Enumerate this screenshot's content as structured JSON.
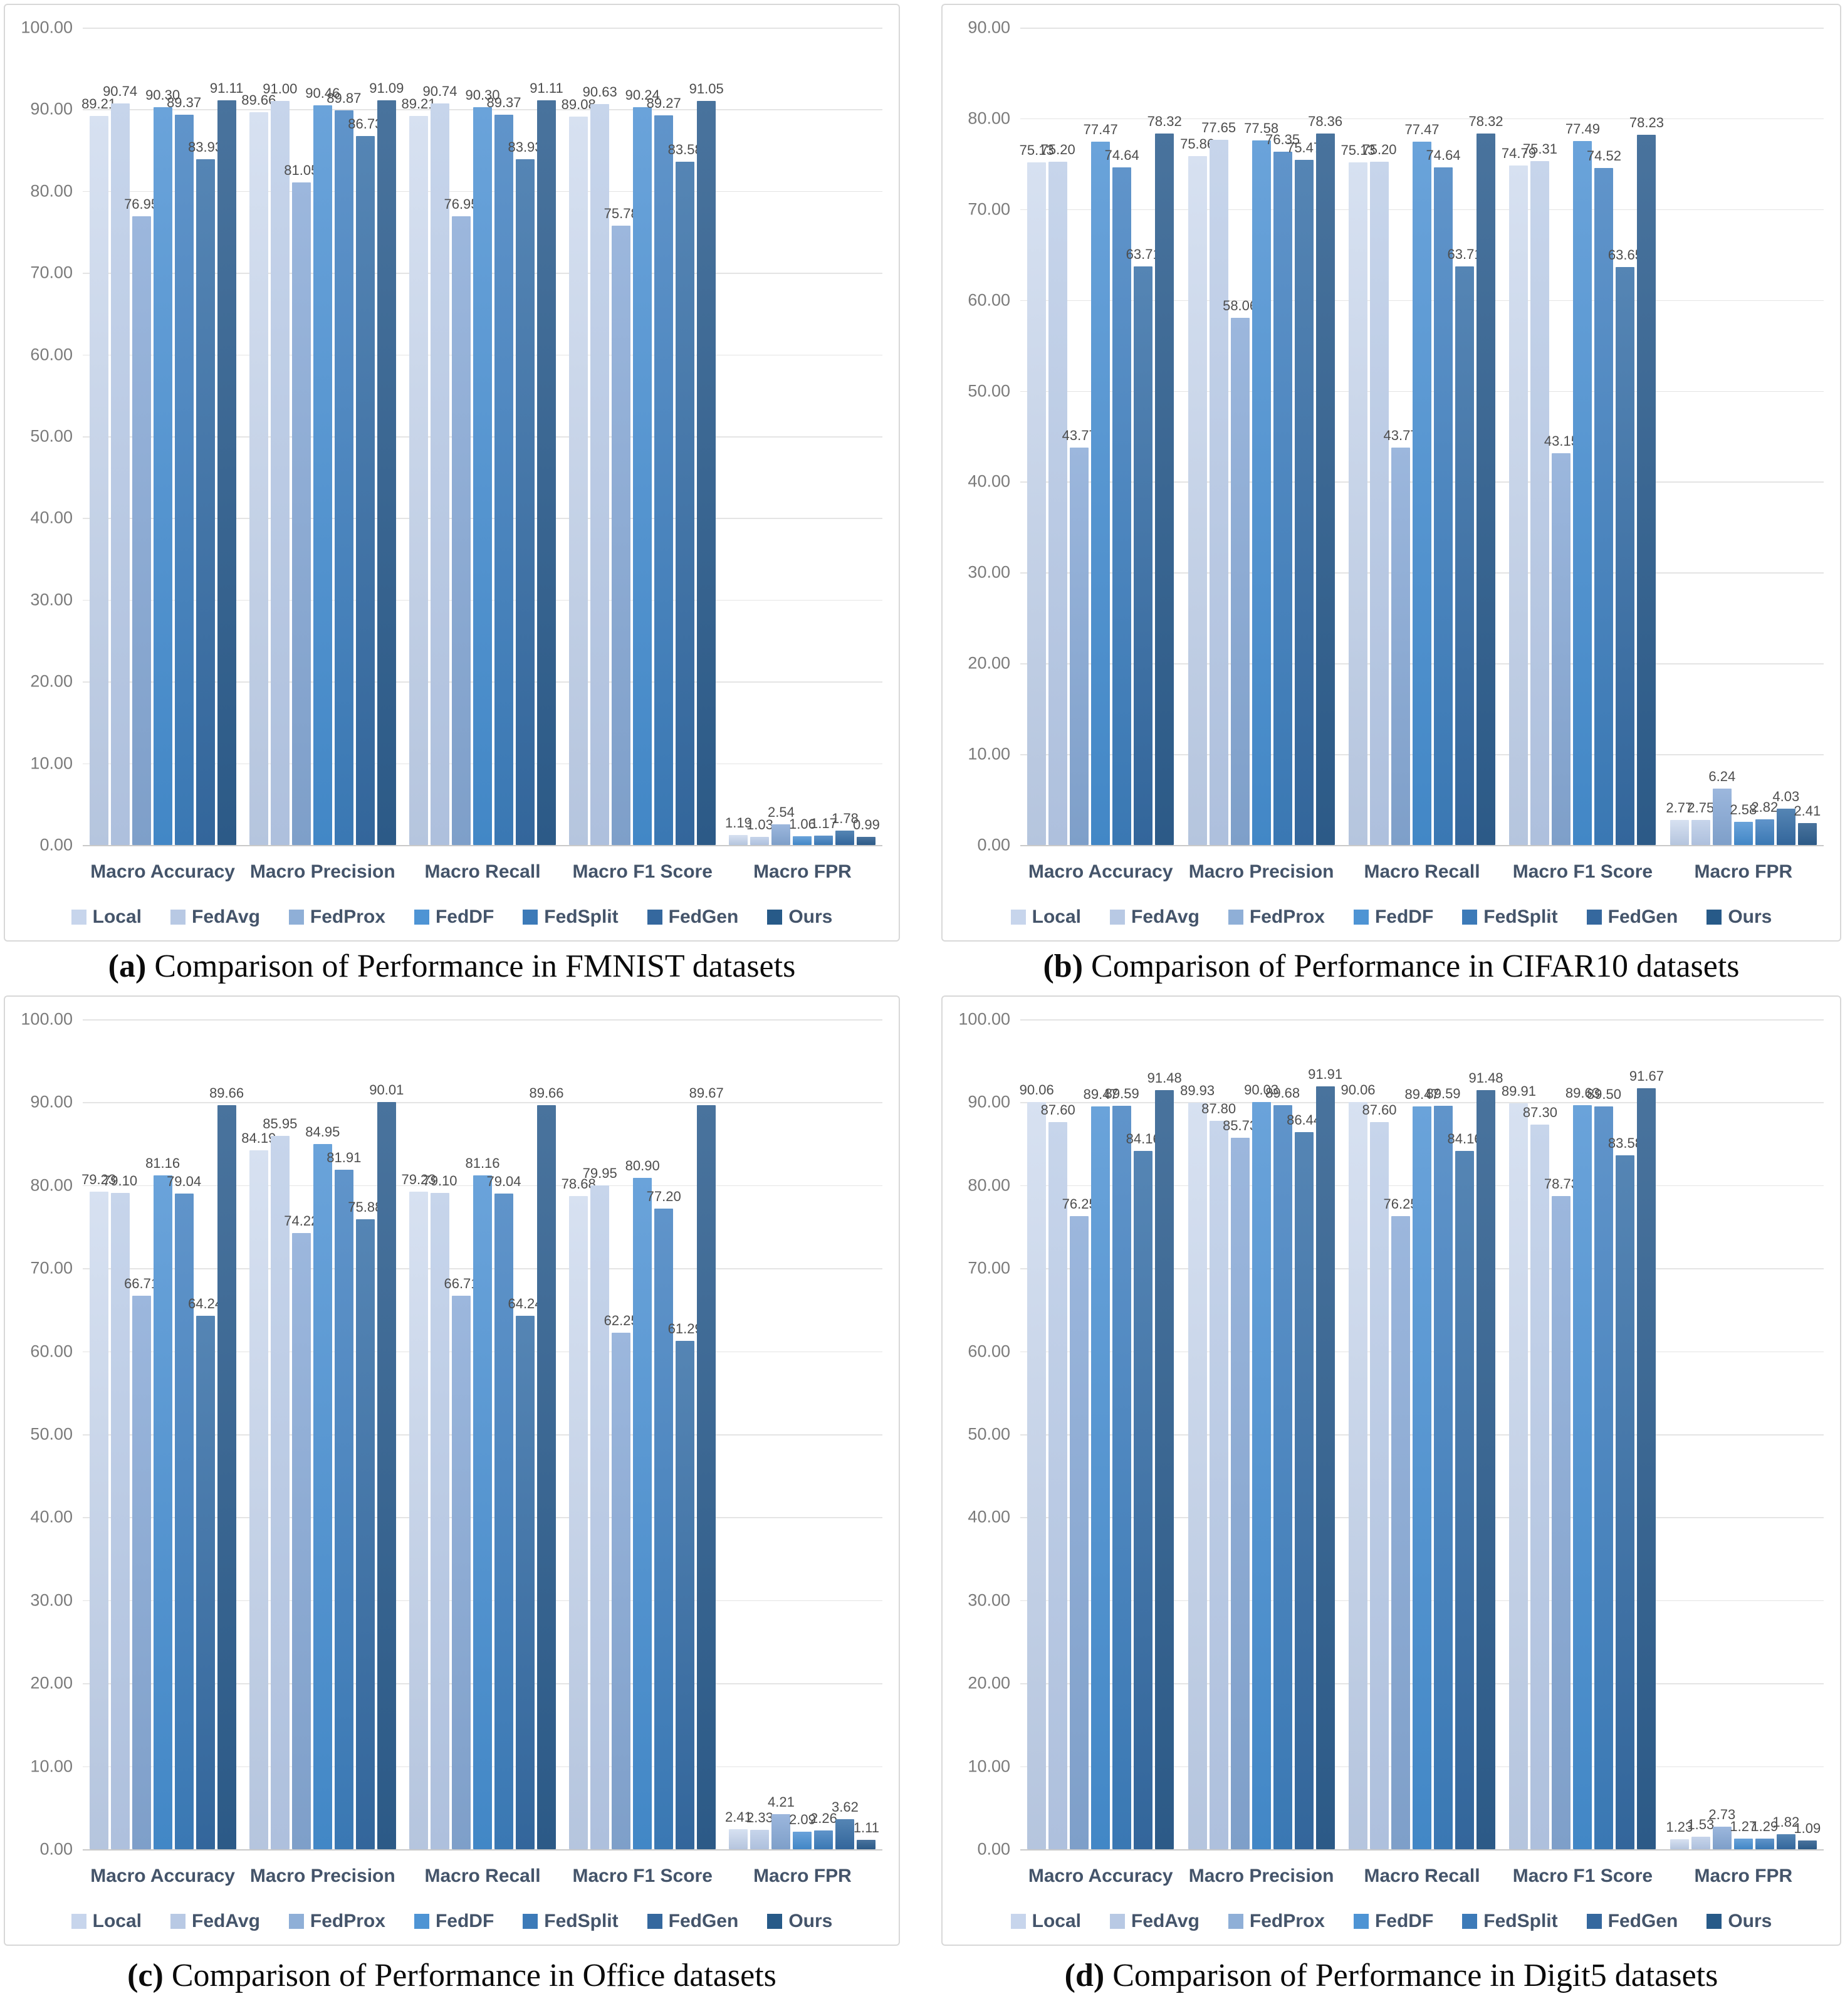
{
  "series": [
    {
      "name": "Local",
      "color": {
        "top": "#d7e1f1",
        "bottom": "#b5c5de",
        "swatch": "#c7d5ec"
      }
    },
    {
      "name": "FedAvg",
      "color": {
        "top": "#c7d5eb",
        "bottom": "#aec0dd",
        "swatch": "#b8c9e4"
      }
    },
    {
      "name": "FedProx",
      "color": {
        "top": "#9cb7dd",
        "bottom": "#7e9fc9",
        "swatch": "#8fafd7"
      }
    },
    {
      "name": "FedDF",
      "color": {
        "top": "#6aa3da",
        "bottom": "#4287c6",
        "swatch": "#4e94d4"
      }
    },
    {
      "name": "FedSplit",
      "color": {
        "top": "#6094ca",
        "bottom": "#3a78b3",
        "swatch": "#3c7ab8"
      }
    },
    {
      "name": "FedGen",
      "color": {
        "top": "#5585b4",
        "bottom": "#33669b",
        "swatch": "#35689e"
      }
    },
    {
      "name": "Ours",
      "color": {
        "top": "#49739d",
        "bottom": "#2c5a87",
        "swatch": "#275a88"
      }
    }
  ],
  "chart_data": [
    {
      "type": "bar",
      "caption": {
        "letter": "a",
        "text": "Comparison of Performance in FMNIST datasets"
      },
      "ylim": [
        0,
        100
      ],
      "ytick_step": 10,
      "grid": true,
      "legend_position": "bottom",
      "categories": [
        "Macro Accuracy",
        "Macro Precision",
        "Macro Recall",
        "Macro F1 Score",
        "Macro FPR"
      ],
      "series": [
        {
          "name": "Local",
          "values": [
            89.21,
            89.66,
            89.21,
            89.08,
            1.19
          ]
        },
        {
          "name": "FedAvg",
          "values": [
            90.74,
            91.0,
            90.74,
            90.63,
            1.03
          ]
        },
        {
          "name": "FedProx",
          "values": [
            76.95,
            81.05,
            76.95,
            75.78,
            2.54
          ]
        },
        {
          "name": "FedDF",
          "values": [
            90.3,
            90.46,
            90.3,
            90.24,
            1.06
          ]
        },
        {
          "name": "FedSplit",
          "values": [
            89.37,
            89.87,
            89.37,
            89.27,
            1.17
          ]
        },
        {
          "name": "FedGen",
          "values": [
            83.93,
            86.73,
            83.93,
            83.58,
            1.78
          ]
        },
        {
          "name": "Ours",
          "values": [
            91.11,
            91.09,
            91.11,
            91.05,
            0.99
          ]
        }
      ]
    },
    {
      "type": "bar",
      "caption": {
        "letter": "b",
        "text": "Comparison of Performance in CIFAR10 datasets"
      },
      "ylim": [
        0,
        90
      ],
      "ytick_step": 10,
      "grid": true,
      "legend_position": "bottom",
      "categories": [
        "Macro Accuracy",
        "Macro Precision",
        "Macro Recall",
        "Macro F1 Score",
        "Macro FPR"
      ],
      "series": [
        {
          "name": "Local",
          "values": [
            75.13,
            75.86,
            75.13,
            74.79,
            2.77
          ]
        },
        {
          "name": "FedAvg",
          "values": [
            75.2,
            77.65,
            75.2,
            75.31,
            2.75
          ]
        },
        {
          "name": "FedProx",
          "values": [
            43.77,
            58.06,
            43.77,
            43.15,
            6.24
          ]
        },
        {
          "name": "FedDF",
          "values": [
            77.47,
            77.58,
            77.47,
            77.49,
            2.58
          ]
        },
        {
          "name": "FedSplit",
          "values": [
            74.64,
            76.35,
            74.64,
            74.52,
            2.82
          ]
        },
        {
          "name": "FedGen",
          "values": [
            63.71,
            75.47,
            63.71,
            63.65,
            4.03
          ]
        },
        {
          "name": "Ours",
          "values": [
            78.32,
            78.36,
            78.32,
            78.23,
            2.41
          ]
        }
      ]
    },
    {
      "type": "bar",
      "caption": {
        "letter": "c",
        "text": "Comparison of Performance in Office datasets"
      },
      "ylim": [
        0,
        100
      ],
      "ytick_step": 10,
      "grid": true,
      "legend_position": "bottom",
      "categories": [
        "Macro Accuracy",
        "Macro Precision",
        "Macro Recall",
        "Macro F1 Score",
        "Macro FPR"
      ],
      "series": [
        {
          "name": "Local",
          "values": [
            79.23,
            84.19,
            79.23,
            78.68,
            2.41
          ]
        },
        {
          "name": "FedAvg",
          "values": [
            79.1,
            85.95,
            79.1,
            79.95,
            2.33
          ]
        },
        {
          "name": "FedProx",
          "values": [
            66.71,
            74.22,
            66.71,
            62.25,
            4.21
          ]
        },
        {
          "name": "FedDF",
          "values": [
            81.16,
            84.95,
            81.16,
            80.9,
            2.09
          ]
        },
        {
          "name": "FedSplit",
          "values": [
            79.04,
            81.91,
            79.04,
            77.2,
            2.26
          ]
        },
        {
          "name": "FedGen",
          "values": [
            64.24,
            75.88,
            64.24,
            61.29,
            3.62
          ]
        },
        {
          "name": "Ours",
          "values": [
            89.66,
            90.01,
            89.66,
            89.67,
            1.11
          ]
        }
      ]
    },
    {
      "type": "bar",
      "caption": {
        "letter": "d",
        "text": "Comparison of Performance in Digit5 datasets"
      },
      "ylim": [
        0,
        100
      ],
      "ytick_step": 10,
      "grid": true,
      "legend_position": "bottom",
      "categories": [
        "Macro Accuracy",
        "Macro Precision",
        "Macro Recall",
        "Macro F1 Score",
        "Macro FPR"
      ],
      "series": [
        {
          "name": "Local",
          "values": [
            90.06,
            89.93,
            90.06,
            89.91,
            1.23
          ]
        },
        {
          "name": "FedAvg",
          "values": [
            87.6,
            87.8,
            87.6,
            87.3,
            1.53
          ]
        },
        {
          "name": "FedProx",
          "values": [
            76.25,
            85.73,
            76.25,
            78.73,
            2.73
          ]
        },
        {
          "name": "FedDF",
          "values": [
            89.47,
            90.03,
            89.47,
            89.63,
            1.27
          ]
        },
        {
          "name": "FedSplit",
          "values": [
            89.59,
            89.68,
            89.59,
            89.5,
            1.29
          ]
        },
        {
          "name": "FedGen",
          "values": [
            84.16,
            86.44,
            84.16,
            83.58,
            1.82
          ]
        },
        {
          "name": "Ours",
          "values": [
            91.48,
            91.91,
            91.48,
            91.67,
            1.09
          ]
        }
      ]
    }
  ]
}
